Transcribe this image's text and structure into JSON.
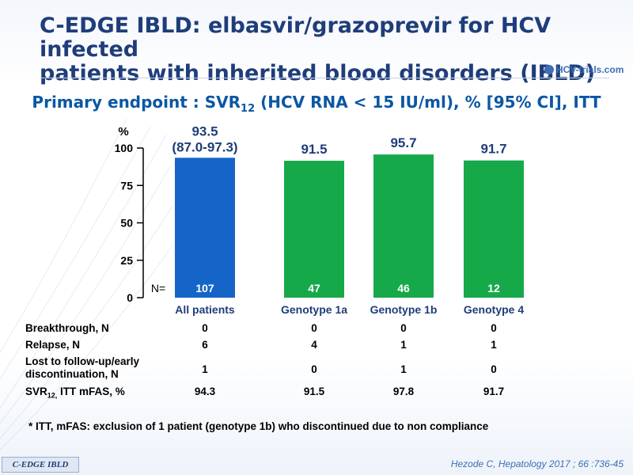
{
  "title": {
    "line1": "C-EDGE IBLD: elbasvir/grazoprevir for HCV infected",
    "line2": "patients with inherited blood disorders (IBLD)"
  },
  "logo": {
    "text": "HCV-trials.com"
  },
  "subtitle": {
    "prefix": "Primary endpoint : SVR",
    "sub": "12",
    "suffix": " (HCV RNA < 15 IU/ml), % [95% CI], ITT"
  },
  "chart_data": {
    "type": "bar",
    "ylabel": "%",
    "ylim": [
      0,
      100
    ],
    "yticks": [
      0,
      25,
      50,
      75,
      100
    ],
    "categories": [
      "All patients",
      "Genotype  1a",
      "Genotype  1b",
      "Genotype  4"
    ],
    "values": [
      93.5,
      91.5,
      95.7,
      91.7
    ],
    "value_labels": [
      "93.5",
      "91.5",
      "95.7",
      "91.7"
    ],
    "ci_label": "(87.0-97.3)",
    "n_label": "N=",
    "n_values": [
      "107",
      "47",
      "46",
      "12"
    ],
    "colors": [
      "#1565c8",
      "#16a94a",
      "#16a94a",
      "#16a94a"
    ],
    "grid": false
  },
  "table": {
    "rows": [
      {
        "label": "Breakthrough, N",
        "values": [
          "0",
          "0",
          "0",
          "0"
        ]
      },
      {
        "label": "Relapse, N",
        "values": [
          "6",
          "4",
          "1",
          "1"
        ]
      },
      {
        "label": "Lost to follow-up/early discontinuation, N",
        "values": [
          "1",
          "0",
          "1",
          "0"
        ]
      }
    ],
    "svr_row": {
      "label_prefix": "SVR",
      "label_sub": "12,",
      "label_suffix": " ITT mFAS, %",
      "values": [
        "94.3",
        "91.5",
        "97.8",
        "91.7"
      ]
    }
  },
  "footnote": "* ITT, mFAS: exclusion of 1 patient (genotype 1b) who discontinued due to non compliance",
  "tag": "C-EDGE IBLD",
  "citation": "Hezode C, Hepatology 2017 ; 66 :736-45"
}
